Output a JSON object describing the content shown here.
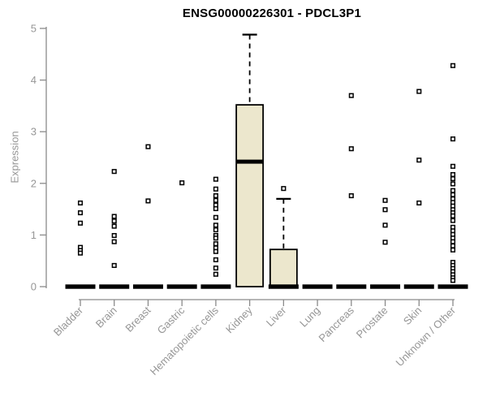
{
  "title": "ENSG00000226301 - PDCL3P1",
  "chart_data": {
    "type": "boxplot",
    "title": "ENSG00000226301 - PDCL3P1",
    "xlabel": "",
    "ylabel": "Expression",
    "ylim": [
      0,
      5
    ],
    "yticks": [
      0,
      1,
      2,
      3,
      4,
      5
    ],
    "grid": false,
    "legend": "none",
    "categories": [
      "Bladder",
      "Brain",
      "Breast",
      "Gastric",
      "Hematopoietic cells",
      "Kidney",
      "Liver",
      "Lung",
      "Pancreas",
      "Prostate",
      "Skin",
      "Unknown / Other"
    ],
    "boxes": [
      {
        "q1": 0,
        "median": 0,
        "q3": 0,
        "whisker_low": 0,
        "whisker_high": 0
      },
      {
        "q1": 0,
        "median": 0,
        "q3": 0,
        "whisker_low": 0,
        "whisker_high": 0
      },
      {
        "q1": 0,
        "median": 0,
        "q3": 0,
        "whisker_low": 0,
        "whisker_high": 0
      },
      {
        "q1": 0,
        "median": 0,
        "q3": 0,
        "whisker_low": 0,
        "whisker_high": 0
      },
      {
        "q1": 0,
        "median": 0,
        "q3": 0,
        "whisker_low": 0,
        "whisker_high": 0
      },
      {
        "q1": 0,
        "median": 2.42,
        "q3": 3.52,
        "whisker_low": 0,
        "whisker_high": 4.88
      },
      {
        "q1": 0,
        "median": 0,
        "q3": 0.72,
        "whisker_low": 0,
        "whisker_high": 1.7
      },
      {
        "q1": 0,
        "median": 0,
        "q3": 0,
        "whisker_low": 0,
        "whisker_high": 0
      },
      {
        "q1": 0,
        "median": 0,
        "q3": 0,
        "whisker_low": 0,
        "whisker_high": 0
      },
      {
        "q1": 0,
        "median": 0,
        "q3": 0,
        "whisker_low": 0,
        "whisker_high": 0
      },
      {
        "q1": 0,
        "median": 0,
        "q3": 0,
        "whisker_low": 0,
        "whisker_high": 0
      },
      {
        "q1": 0,
        "median": 0,
        "q3": 0,
        "whisker_low": 0,
        "whisker_high": 0
      }
    ],
    "outliers": [
      [
        1.62,
        1.43,
        1.23,
        0.76,
        0.7,
        0.65
      ],
      [
        2.23,
        1.36,
        1.27,
        1.17,
        0.99,
        0.87,
        0.41
      ],
      [
        2.71,
        1.66
      ],
      [
        2.01
      ],
      [
        2.08,
        1.89,
        1.76,
        1.67,
        1.58,
        1.51,
        1.34,
        1.19,
        1.1,
        0.99,
        0.94,
        0.83,
        0.75,
        0.68,
        0.52,
        0.36,
        0.24
      ],
      [],
      [
        1.9
      ],
      [],
      [
        3.7,
        2.67,
        1.76
      ],
      [
        1.67,
        1.49,
        1.19,
        0.86
      ],
      [
        3.78,
        2.45,
        1.62
      ],
      [
        4.28,
        2.86,
        2.33,
        2.17,
        2.09,
        1.99,
        1.86,
        1.78,
        1.7,
        1.63,
        1.56,
        1.49,
        1.43,
        1.37,
        1.28,
        1.15,
        1.08,
        1.01,
        0.94,
        0.87,
        0.79,
        0.71,
        0.47,
        0.41,
        0.35,
        0.29,
        0.23,
        0.17,
        0.12
      ]
    ],
    "colors": {
      "box_fill": "#ECE7CD",
      "box_border": "#000000",
      "median": "#000000",
      "whisker": "#000000",
      "point_border": "#000000",
      "point_fill": "#FFFFFF",
      "axis_line": "#8A8A8A",
      "tick_label": "#969696",
      "title": "#000000",
      "background": "#FFFFFF"
    }
  }
}
